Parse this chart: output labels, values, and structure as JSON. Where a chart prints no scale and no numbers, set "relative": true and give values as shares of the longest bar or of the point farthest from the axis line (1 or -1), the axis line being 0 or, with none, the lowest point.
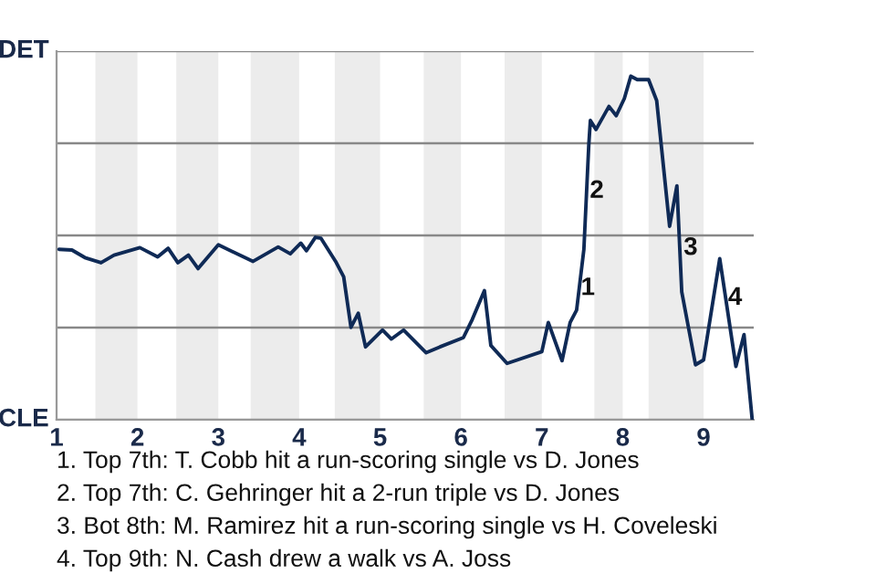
{
  "chart_data": {
    "type": "line",
    "x": [
      1.03,
      1.19,
      1.35,
      1.55,
      1.71,
      2.03,
      2.25,
      2.38,
      2.5,
      2.63,
      2.75,
      3.0,
      3.43,
      3.74,
      3.89,
      4.02,
      4.09,
      4.2,
      4.27,
      4.45,
      4.55,
      4.64,
      4.73,
      4.82,
      5.03,
      5.14,
      5.29,
      5.57,
      5.74,
      6.03,
      6.14,
      6.29,
      6.37,
      6.57,
      7.0,
      7.08,
      7.25,
      7.35,
      7.43,
      7.52,
      7.58,
      7.6,
      7.67,
      7.83,
      7.92,
      8.02,
      8.1,
      8.18,
      8.32,
      8.42,
      8.58,
      8.67,
      8.73,
      8.9,
      9.0,
      9.2,
      9.4,
      9.5,
      9.6
    ],
    "series": [
      {
        "color": "#0f2a56",
        "values": [
          0.496,
          0.494,
          0.472,
          0.457,
          0.479,
          0.501,
          0.474,
          0.499,
          0.457,
          0.479,
          0.44,
          0.509,
          0.461,
          0.503,
          0.483,
          0.514,
          0.492,
          0.531,
          0.528,
          0.461,
          0.416,
          0.269,
          0.31,
          0.212,
          0.261,
          0.235,
          0.261,
          0.195,
          0.212,
          0.239,
          0.292,
          0.376,
          0.216,
          0.164,
          0.198,
          0.283,
          0.172,
          0.283,
          0.319,
          0.496,
          0.797,
          0.871,
          0.845,
          0.912,
          0.885,
          0.935,
          1,
          0.99,
          0.99,
          0.929,
          0.563,
          0.681,
          0.372,
          0.16,
          0.174,
          0.469,
          0.155,
          0.248,
          0.003
        ]
      }
    ],
    "relative": true,
    "xlim": [
      1,
      9.62
    ],
    "xticks": [
      1,
      2,
      3,
      4,
      5,
      6,
      7,
      8,
      9
    ],
    "grid": "y",
    "marker": "none",
    "line_style": "solid",
    "bands": [
      {
        "axis": "x",
        "from": 1.48,
        "to": 2,
        "color": "#ececec"
      },
      {
        "axis": "x",
        "from": 2.48,
        "to": 3,
        "color": "#ececec"
      },
      {
        "axis": "x",
        "from": 3.4,
        "to": 4,
        "color": "#ececec"
      },
      {
        "axis": "x",
        "from": 4.44,
        "to": 5,
        "color": "#ececec"
      },
      {
        "axis": "x",
        "from": 5.54,
        "to": 6,
        "color": "#ececec"
      },
      {
        "axis": "x",
        "from": 6.54,
        "to": 7,
        "color": "#ececec"
      },
      {
        "axis": "x",
        "from": 7.65,
        "to": 8,
        "color": "#ececec"
      },
      {
        "axis": "x",
        "from": 8.32,
        "to": 9,
        "color": "#ececec"
      }
    ],
    "annotations": [
      "DET",
      "CLE",
      {
        "text": "1",
        "x": 7.57,
        "y": 0.382
      },
      {
        "text": "2",
        "x": 7.68,
        "y": 0.665
      },
      {
        "text": "3",
        "x": 8.84,
        "y": 0.499
      },
      {
        "text": "4",
        "x": 9.39,
        "y": 0.354
      },
      "1. Top 7th: T. Cobb hit a run-scoring single vs D. Jones",
      "2. Top 7th: C. Gehringer hit a 2-run triple vs D. Jones",
      "3. Bot 8th: M. Ramirez hit a run-scoring single vs H. Coveleski",
      "4. Top 9th: N. Cash drew a walk vs A. Joss"
    ]
  }
}
